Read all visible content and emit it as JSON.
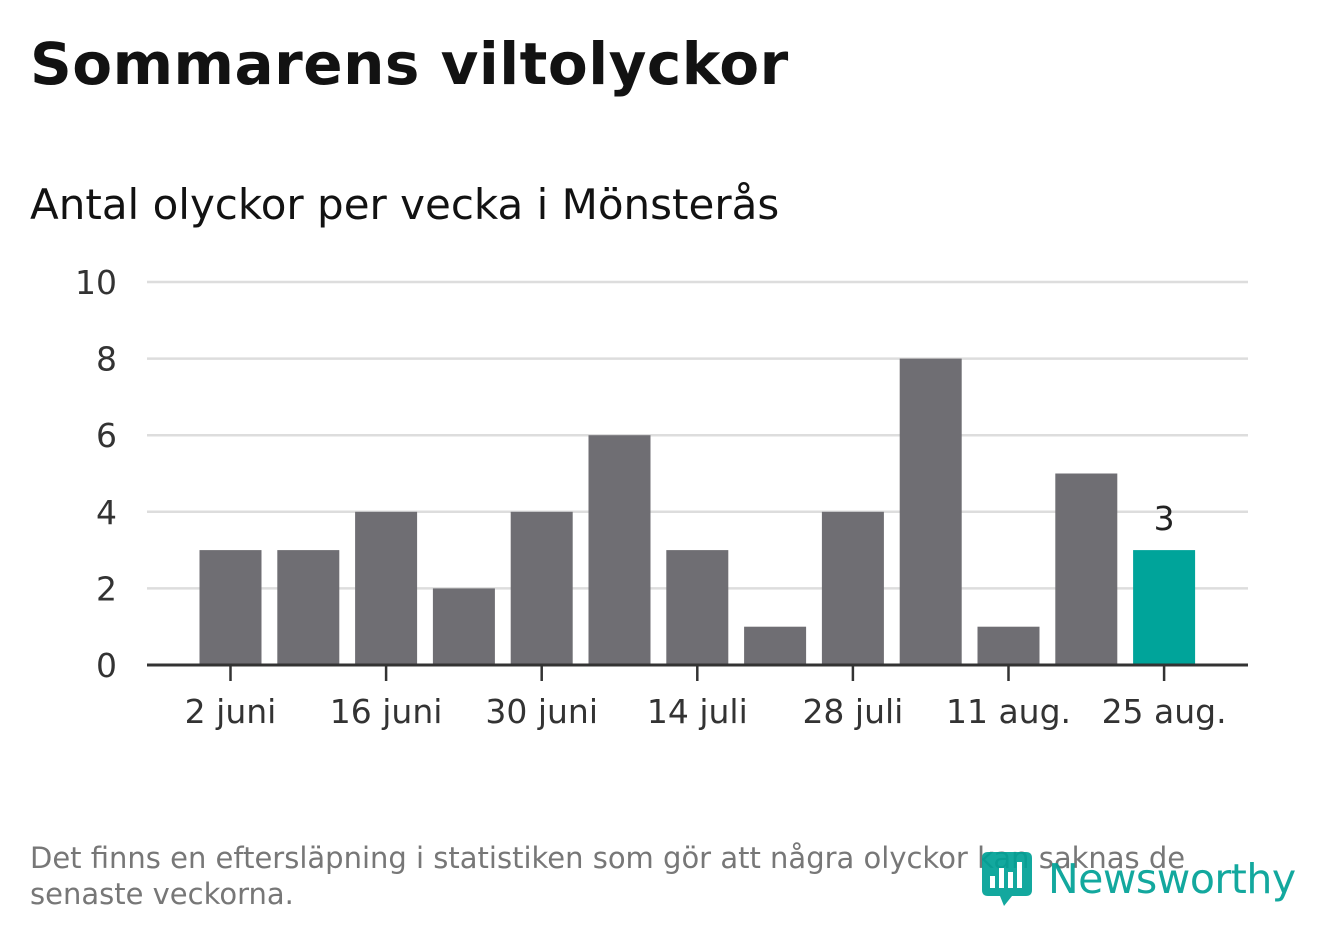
{
  "header": {
    "title": "Sommarens viltolyckor",
    "subtitle": "Antal olyckor per vecka i Mönsterås"
  },
  "footer": {
    "note": "Det finns en eftersläpning i statistiken som gör att några olyckor kan saknas de senaste veckorna.",
    "logo_text": "Newsworthy"
  },
  "colors": {
    "bar": "#6f6e73",
    "highlight": "#00a49a",
    "grid": "#dddddd",
    "axis": "#333333",
    "brand": "#00a196"
  },
  "chart_data": {
    "type": "bar",
    "x": [
      "2024-06-02",
      "2024-06-09",
      "2024-06-16",
      "2024-06-23",
      "2024-06-30",
      "2024-07-07",
      "2024-07-14",
      "2024-07-21",
      "2024-07-28",
      "2024-08-04",
      "2024-08-11",
      "2024-08-18",
      "2024-08-25"
    ],
    "values": [
      3,
      3,
      4,
      2,
      4,
      6,
      3,
      1,
      4,
      8,
      1,
      5,
      3
    ],
    "highlight_index": 12,
    "highlight_label": "3",
    "xticks": [
      "2 juni",
      "16 juni",
      "30 juni",
      "14 juli",
      "28 juli",
      "11 aug.",
      "25 aug."
    ],
    "yticks": [
      "0",
      "2",
      "4",
      "6",
      "8",
      "10"
    ],
    "ylim": [
      0,
      10
    ],
    "grid": true,
    "legend": false
  }
}
